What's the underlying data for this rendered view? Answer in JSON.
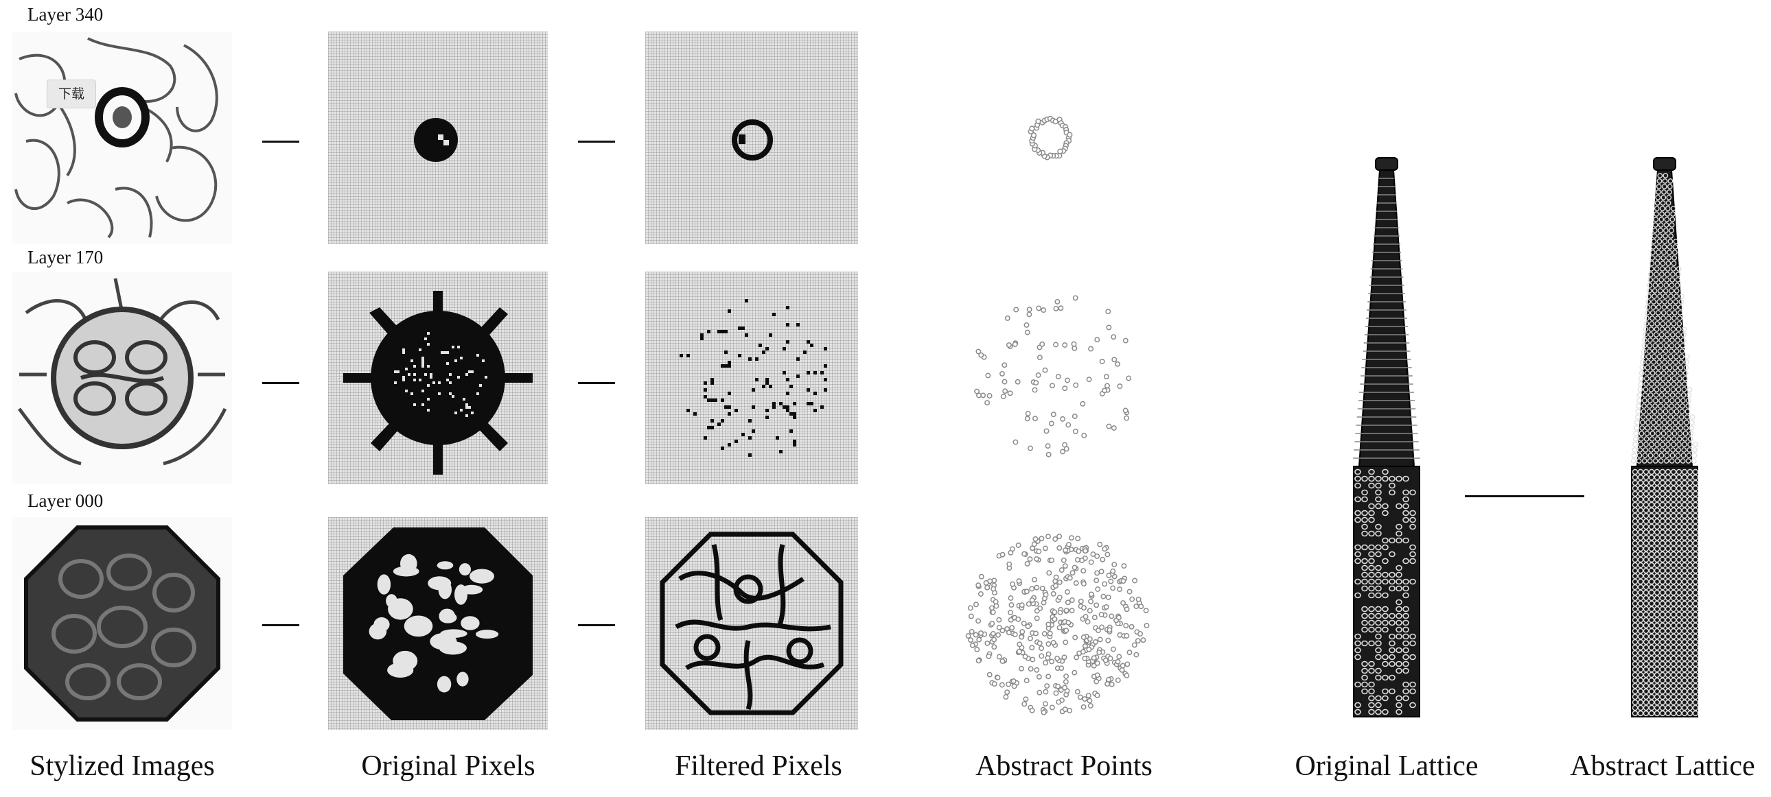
{
  "layers": [
    {
      "label": "Layer 340"
    },
    {
      "label": "Layer 170"
    },
    {
      "label": "Layer 000"
    }
  ],
  "columns": {
    "stylized": "Stylized Images",
    "original_pixels": "Original Pixels",
    "filtered_pixels": "Filtered Pixels",
    "abstract_points": "Abstract Points",
    "original_lattice": "Original Lattice",
    "abstract_lattice": "Abstract Lattice"
  },
  "overlay": {
    "download_button": "下载"
  },
  "colors": {
    "pixel_dark": "#0d0d0d",
    "grid_bg": "#e4e4e4",
    "point_stroke": "#8a8a8a",
    "line": "#111111"
  }
}
